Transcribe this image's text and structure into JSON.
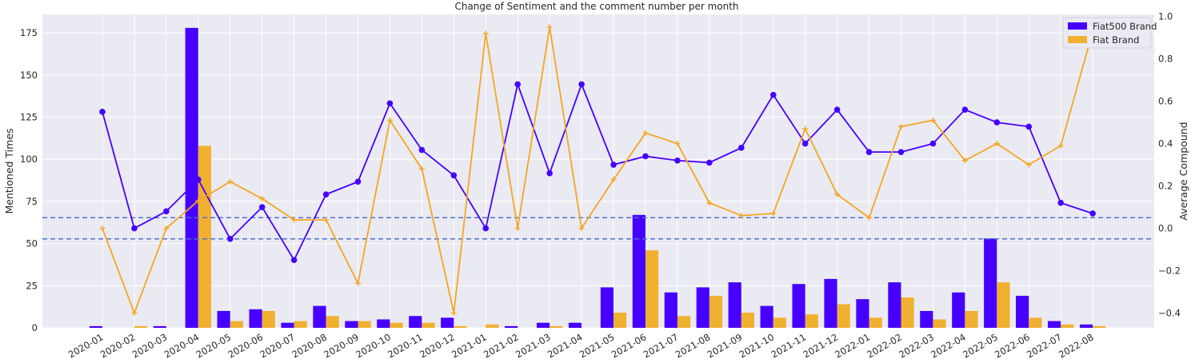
{
  "chart_data": {
    "type": "bar",
    "title": "Change of Sentiment and the comment number per month",
    "ylabel": "Mentioned Times",
    "y2label": "Average Compound",
    "ylim": [
      0,
      186
    ],
    "y2lim": [
      -0.47,
      1.01
    ],
    "yticks": [
      0,
      25,
      50,
      75,
      100,
      125,
      150,
      175
    ],
    "y2ticks": [
      -0.4,
      -0.2,
      0.0,
      0.2,
      0.4,
      0.6,
      0.8,
      1.0
    ],
    "y2tick_labels": [
      "−0.4",
      "−0.2",
      "0.0",
      "0.2",
      "0.4",
      "0.6",
      "0.8",
      "1.0"
    ],
    "grid": true,
    "legend_position": "top-right",
    "categories": [
      "2020-01",
      "2020-02",
      "2020-03",
      "2020-04",
      "2020-05",
      "2020-06",
      "2020-07",
      "2020-08",
      "2020-09",
      "2020-10",
      "2020-11",
      "2020-12",
      "2021-01",
      "2021-02",
      "2021-03",
      "2021-04",
      "2021-05",
      "2021-06",
      "2021-07",
      "2021-08",
      "2021-09",
      "2021-10",
      "2021-11",
      "2021-12",
      "2022-01",
      "2022-02",
      "2022-03",
      "2022-04",
      "2022-05",
      "2022-06",
      "2022-07",
      "2022-08"
    ],
    "series": [
      {
        "name": "Fiat500 Brand",
        "kind": "bar",
        "axis": "left",
        "color": "#4600ff",
        "values": [
          1,
          0,
          1,
          178,
          10,
          11,
          3,
          13,
          4,
          5,
          7,
          6,
          0,
          1,
          3,
          3,
          24,
          67,
          21,
          24,
          27,
          13,
          26,
          29,
          17,
          27,
          10,
          21,
          53,
          19,
          4,
          2
        ]
      },
      {
        "name": "Fiat Brand",
        "kind": "bar",
        "axis": "left",
        "color": "#f0b030",
        "values": [
          0,
          1,
          0,
          108,
          4,
          10,
          4,
          7,
          4,
          3,
          3,
          1,
          2,
          0,
          1,
          0,
          9,
          46,
          7,
          19,
          9,
          6,
          8,
          14,
          6,
          18,
          5,
          10,
          27,
          6,
          2,
          1
        ]
      },
      {
        "name": "Fiat500 Brand",
        "kind": "line",
        "axis": "right",
        "color": "#4600ff",
        "marker": "circle",
        "values": [
          0.55,
          0.0,
          0.08,
          0.23,
          -0.05,
          0.1,
          -0.15,
          0.16,
          0.22,
          0.59,
          0.37,
          0.25,
          0.0,
          0.68,
          0.26,
          0.68,
          0.3,
          0.34,
          0.32,
          0.31,
          0.38,
          0.63,
          0.4,
          0.56,
          0.36,
          0.36,
          0.4,
          0.56,
          0.5,
          0.48,
          0.12,
          0.07
        ]
      },
      {
        "name": "Fiat Brand",
        "kind": "line",
        "axis": "right",
        "color": "#f5a623",
        "marker": "plus",
        "values": [
          0.0,
          -0.4,
          0.0,
          0.13,
          0.22,
          0.14,
          0.04,
          0.04,
          -0.26,
          0.51,
          0.28,
          -0.4,
          0.92,
          0.0,
          0.95,
          0.0,
          0.23,
          0.45,
          0.4,
          0.12,
          0.06,
          0.07,
          0.47,
          0.16,
          0.05,
          0.48,
          0.51,
          0.32,
          0.4,
          0.3,
          0.39,
          0.93
        ]
      }
    ],
    "hlines": [
      {
        "axis": "right",
        "value": 0.05,
        "style": "dashed",
        "color": "#5070cc"
      },
      {
        "axis": "right",
        "value": -0.05,
        "style": "dashed",
        "color": "#5070cc"
      }
    ]
  }
}
